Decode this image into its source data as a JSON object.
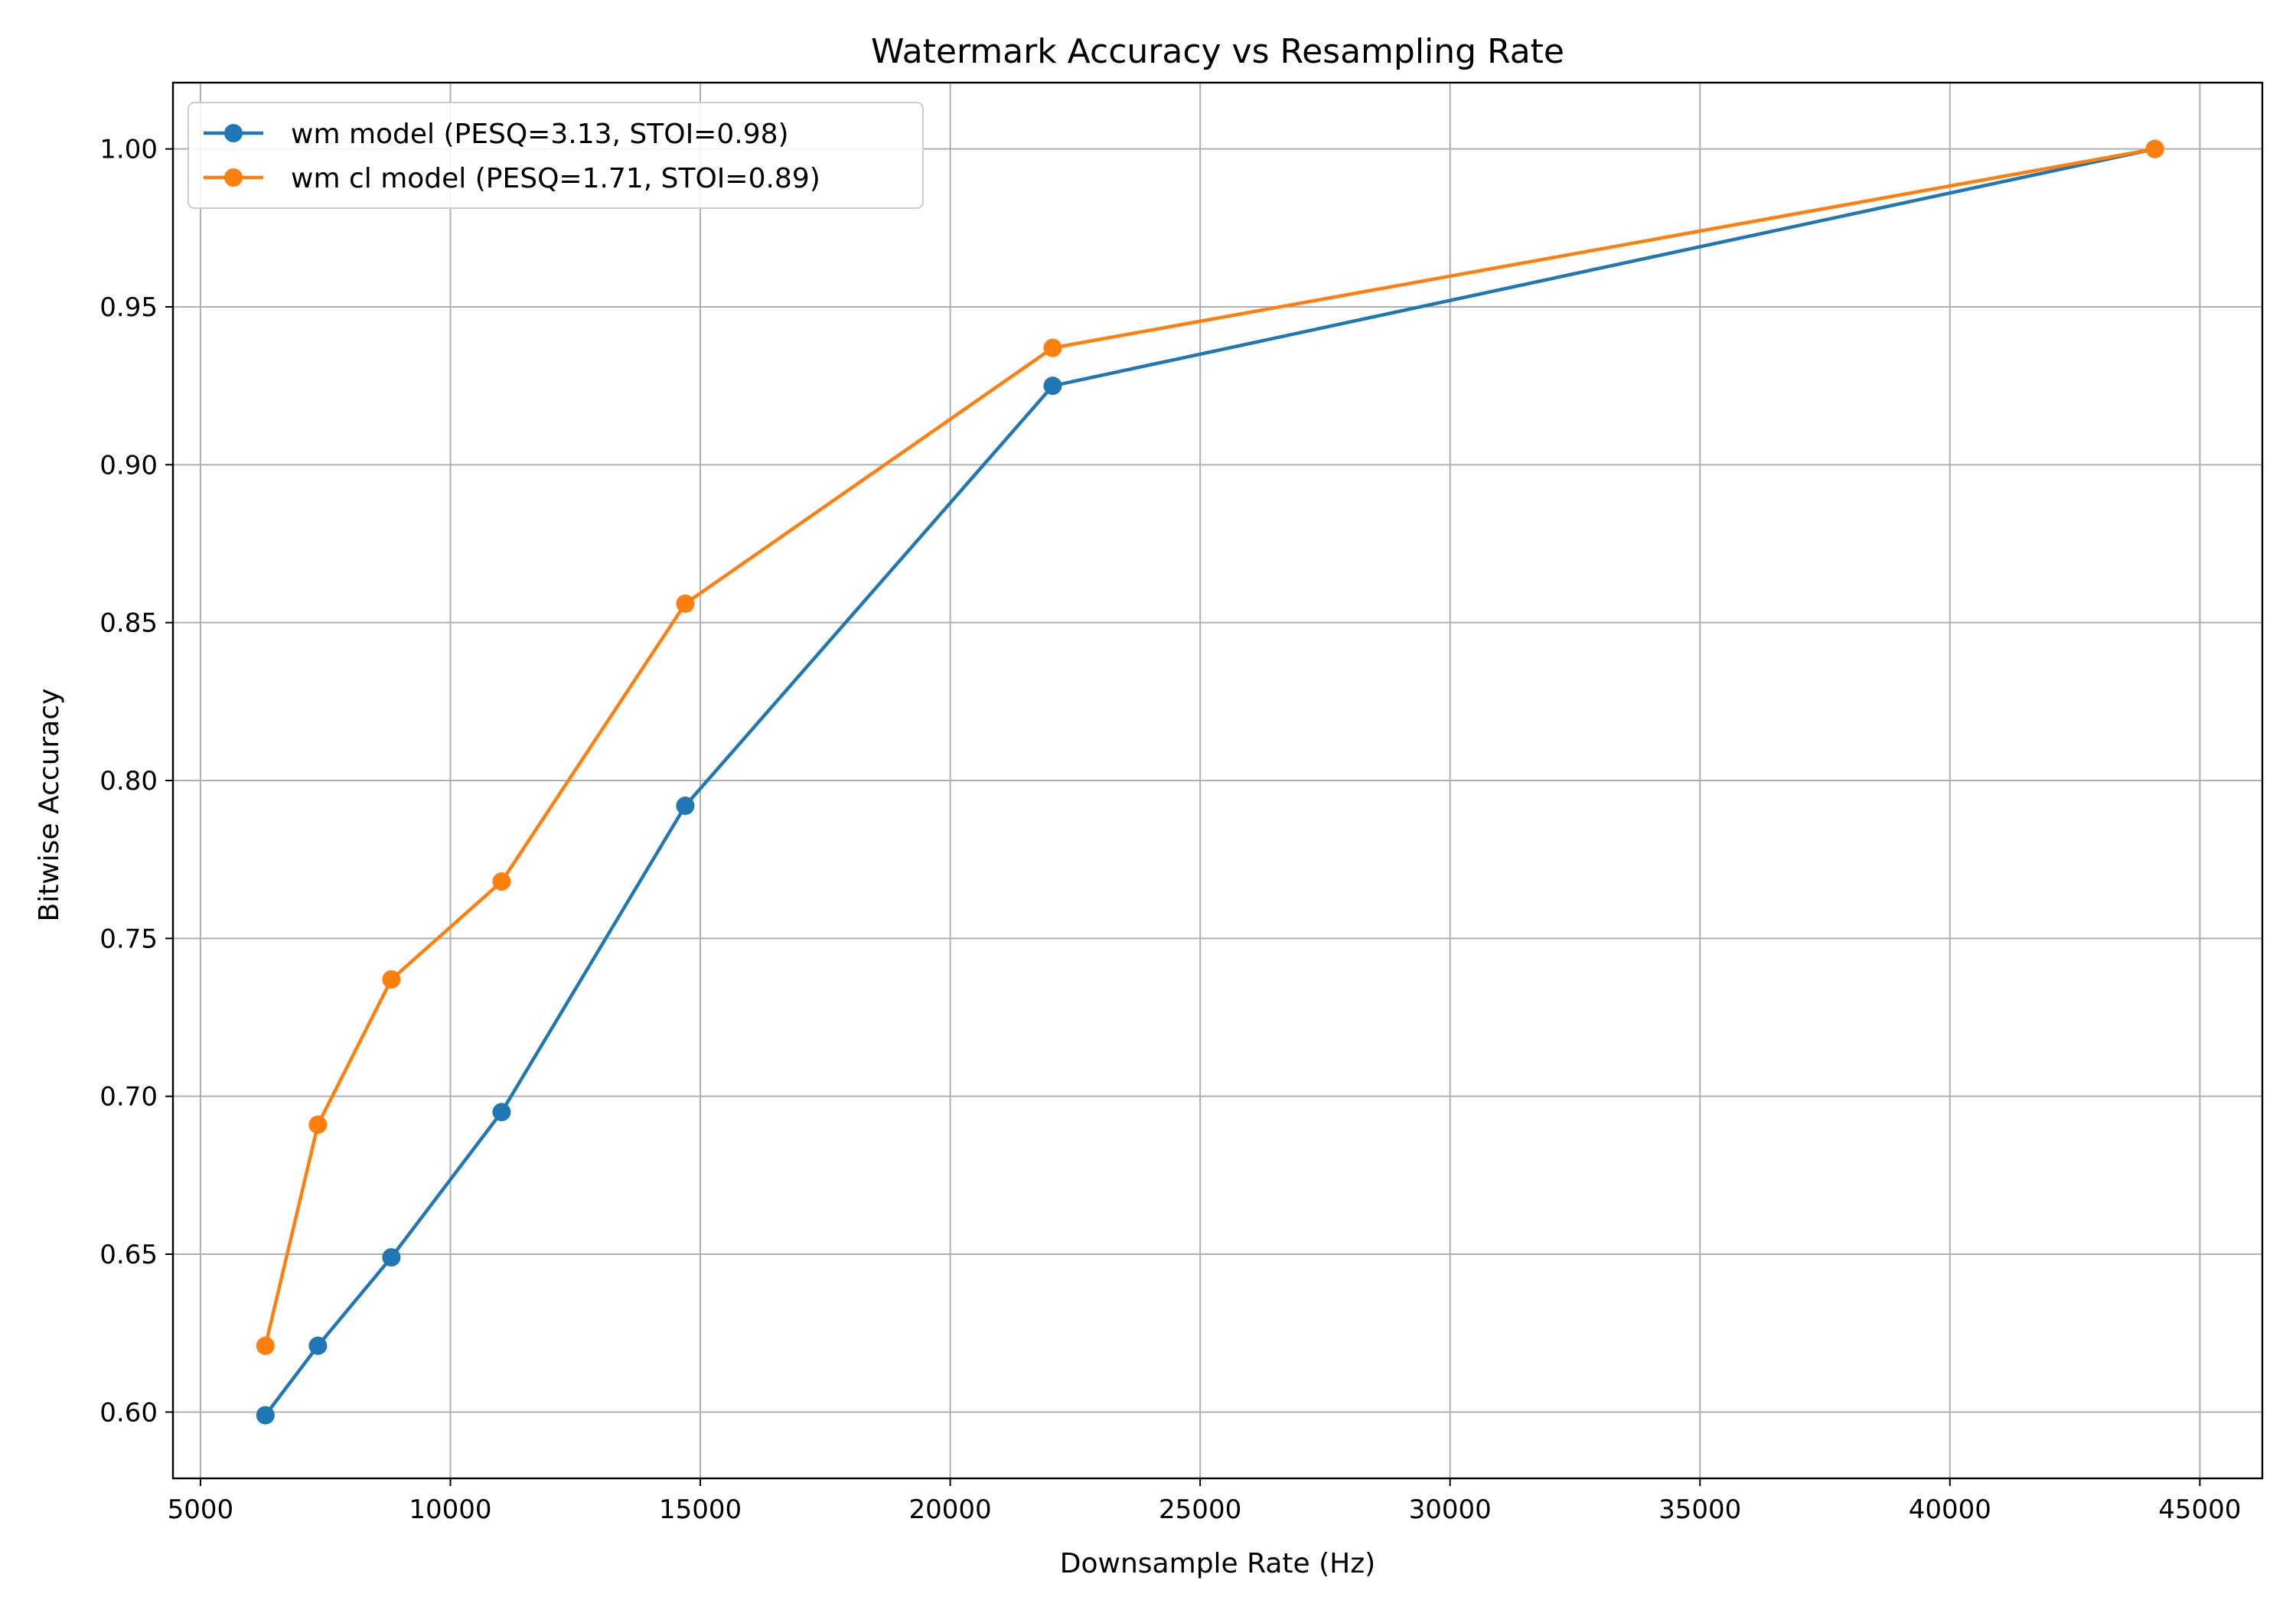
{
  "chart_data": {
    "type": "line",
    "title": "Watermark Accuracy vs Resampling Rate",
    "xlabel": "Downsample Rate (Hz)",
    "ylabel": "Bitwise Accuracy",
    "xlim": [
      4450,
      46250
    ],
    "ylim": [
      0.579,
      1.021
    ],
    "x_ticks": [
      5000,
      10000,
      15000,
      20000,
      25000,
      30000,
      35000,
      40000,
      45000
    ],
    "x_tick_labels": [
      "5000",
      "10000",
      "15000",
      "20000",
      "25000",
      "30000",
      "35000",
      "40000",
      "45000"
    ],
    "y_ticks": [
      0.6,
      0.65,
      0.7,
      0.75,
      0.8,
      0.85,
      0.9,
      0.95,
      1.0
    ],
    "y_tick_labels": [
      "0.60",
      "0.65",
      "0.70",
      "0.75",
      "0.80",
      "0.85",
      "0.90",
      "0.95",
      "1.00"
    ],
    "grid": true,
    "legend_position": "top-left",
    "x": [
      6300,
      7350,
      8820,
      11025,
      14700,
      22050,
      44100
    ],
    "series": [
      {
        "name": "wm model (PESQ=3.13, STOI=0.98)",
        "color": "#1f77b4",
        "values": [
          0.599,
          0.621,
          0.649,
          0.695,
          0.792,
          0.925,
          1.0
        ]
      },
      {
        "name": "wm cl model (PESQ=1.71, STOI=0.89)",
        "color": "#ff7f0e",
        "values": [
          0.621,
          0.691,
          0.737,
          0.768,
          0.856,
          0.937,
          1.0
        ]
      }
    ]
  }
}
